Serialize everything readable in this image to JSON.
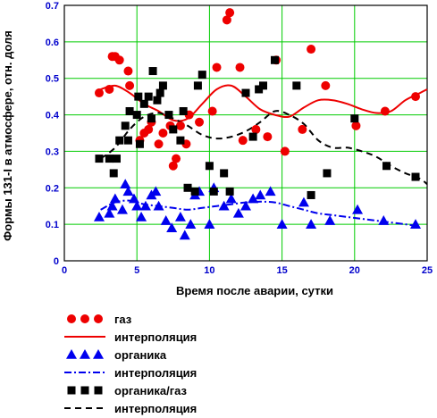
{
  "chart_data": {
    "type": "scatter",
    "xlabel": "Время после аварии, сутки",
    "ylabel": "Формы 131-I в атмосфере, отн. доля",
    "xlim": [
      0,
      25
    ],
    "ylim": [
      0,
      0.7
    ],
    "x_ticks": [
      "0",
      "5",
      "10",
      "15",
      "20",
      "25"
    ],
    "y_ticks": [
      "0",
      "0.1",
      "0.2",
      "0.3",
      "0.4",
      "0.5",
      "0.6",
      "0.7"
    ],
    "grid": true,
    "grid_color": "#00cc00",
    "legend_placement": "bottom",
    "series": [
      {
        "name": "газ",
        "kind": "points",
        "marker": "circle",
        "color": "#ee0000",
        "points": [
          [
            2.4,
            0.46
          ],
          [
            3.1,
            0.47
          ],
          [
            3.3,
            0.56
          ],
          [
            3.5,
            0.56
          ],
          [
            3.8,
            0.55
          ],
          [
            4.5,
            0.48
          ],
          [
            4.4,
            0.52
          ],
          [
            5.2,
            0.33
          ],
          [
            5.5,
            0.35
          ],
          [
            5.8,
            0.36
          ],
          [
            6.0,
            0.38
          ],
          [
            6.5,
            0.32
          ],
          [
            6.8,
            0.35
          ],
          [
            7.3,
            0.37
          ],
          [
            7.5,
            0.26
          ],
          [
            7.7,
            0.28
          ],
          [
            8.0,
            0.37
          ],
          [
            8.4,
            0.32
          ],
          [
            8.6,
            0.4
          ],
          [
            9.3,
            0.38
          ],
          [
            10.2,
            0.41
          ],
          [
            10.5,
            0.53
          ],
          [
            11.2,
            0.66
          ],
          [
            11.4,
            0.68
          ],
          [
            12.1,
            0.53
          ],
          [
            12.3,
            0.33
          ],
          [
            13.2,
            0.36
          ],
          [
            14.0,
            0.34
          ],
          [
            14.6,
            0.55
          ],
          [
            15.2,
            0.3
          ],
          [
            16.4,
            0.36
          ],
          [
            17.0,
            0.58
          ],
          [
            18.0,
            0.48
          ],
          [
            20.1,
            0.37
          ],
          [
            22.1,
            0.41
          ],
          [
            24.2,
            0.45
          ]
        ]
      },
      {
        "name": "интерполяция",
        "kind": "line",
        "dash": "solid",
        "color": "#ee0000",
        "points": [
          [
            2.5,
            0.47
          ],
          [
            3.5,
            0.48
          ],
          [
            4.5,
            0.46
          ],
          [
            5.5,
            0.43
          ],
          [
            6.5,
            0.41
          ],
          [
            7.5,
            0.385
          ],
          [
            8.5,
            0.39
          ],
          [
            9.5,
            0.43
          ],
          [
            10.5,
            0.47
          ],
          [
            11.5,
            0.48
          ],
          [
            12.5,
            0.45
          ],
          [
            13.5,
            0.415
          ],
          [
            14.5,
            0.4
          ],
          [
            15.5,
            0.395
          ],
          [
            16.5,
            0.42
          ],
          [
            17.5,
            0.44
          ],
          [
            18.5,
            0.44
          ],
          [
            19.5,
            0.43
          ],
          [
            20.5,
            0.415
          ],
          [
            21.5,
            0.405
          ],
          [
            22.5,
            0.41
          ],
          [
            23.5,
            0.44
          ],
          [
            24.5,
            0.46
          ],
          [
            25.0,
            0.47
          ]
        ]
      },
      {
        "name": "органика",
        "kind": "points",
        "marker": "triangle",
        "color": "#0000ee",
        "points": [
          [
            2.4,
            0.12
          ],
          [
            3.1,
            0.13
          ],
          [
            3.3,
            0.15
          ],
          [
            3.5,
            0.17
          ],
          [
            4.0,
            0.14
          ],
          [
            4.2,
            0.21
          ],
          [
            4.4,
            0.19
          ],
          [
            4.8,
            0.17
          ],
          [
            5.0,
            0.15
          ],
          [
            5.3,
            0.12
          ],
          [
            5.6,
            0.15
          ],
          [
            6.0,
            0.18
          ],
          [
            6.3,
            0.19
          ],
          [
            6.5,
            0.15
          ],
          [
            7.0,
            0.11
          ],
          [
            7.4,
            0.09
          ],
          [
            8.0,
            0.12
          ],
          [
            8.3,
            0.07
          ],
          [
            8.7,
            0.1
          ],
          [
            9.0,
            0.18
          ],
          [
            9.3,
            0.19
          ],
          [
            10.0,
            0.1
          ],
          [
            10.3,
            0.2
          ],
          [
            11.0,
            0.15
          ],
          [
            11.5,
            0.17
          ],
          [
            12.0,
            0.13
          ],
          [
            12.5,
            0.15
          ],
          [
            13.0,
            0.17
          ],
          [
            13.5,
            0.18
          ],
          [
            14.2,
            0.19
          ],
          [
            15.0,
            0.1
          ],
          [
            16.5,
            0.16
          ],
          [
            17.0,
            0.1
          ],
          [
            18.3,
            0.11
          ],
          [
            20.2,
            0.14
          ],
          [
            22.0,
            0.11
          ],
          [
            24.2,
            0.1
          ]
        ]
      },
      {
        "name": "интерполяция",
        "kind": "line",
        "dash": "dash-dot",
        "color": "#0000ee",
        "points": [
          [
            2.5,
            0.14
          ],
          [
            3.5,
            0.16
          ],
          [
            4.5,
            0.165
          ],
          [
            5.5,
            0.155
          ],
          [
            6.5,
            0.15
          ],
          [
            7.5,
            0.145
          ],
          [
            8.5,
            0.14
          ],
          [
            9.5,
            0.145
          ],
          [
            10.5,
            0.15
          ],
          [
            11.5,
            0.155
          ],
          [
            12.5,
            0.16
          ],
          [
            13.5,
            0.162
          ],
          [
            14.5,
            0.16
          ],
          [
            15.5,
            0.15
          ],
          [
            16.5,
            0.14
          ],
          [
            17.5,
            0.13
          ],
          [
            18.5,
            0.125
          ],
          [
            19.5,
            0.12
          ],
          [
            20.5,
            0.115
          ],
          [
            21.5,
            0.11
          ],
          [
            22.5,
            0.105
          ],
          [
            23.5,
            0.1
          ],
          [
            24.3,
            0.095
          ]
        ]
      },
      {
        "name": "органика/газ",
        "kind": "points",
        "marker": "square",
        "color": "#000000",
        "points": [
          [
            2.4,
            0.28
          ],
          [
            3.1,
            0.28
          ],
          [
            3.4,
            0.24
          ],
          [
            3.6,
            0.28
          ],
          [
            3.8,
            0.33
          ],
          [
            4.2,
            0.37
          ],
          [
            4.4,
            0.33
          ],
          [
            4.5,
            0.41
          ],
          [
            5.0,
            0.4
          ],
          [
            5.1,
            0.45
          ],
          [
            5.2,
            0.32
          ],
          [
            5.5,
            0.43
          ],
          [
            5.8,
            0.45
          ],
          [
            6.0,
            0.39
          ],
          [
            6.1,
            0.52
          ],
          [
            6.4,
            0.44
          ],
          [
            6.6,
            0.46
          ],
          [
            6.8,
            0.48
          ],
          [
            7.2,
            0.4
          ],
          [
            7.5,
            0.36
          ],
          [
            8.0,
            0.33
          ],
          [
            8.2,
            0.41
          ],
          [
            8.5,
            0.2
          ],
          [
            9.0,
            0.19
          ],
          [
            9.2,
            0.48
          ],
          [
            9.5,
            0.51
          ],
          [
            10.0,
            0.26
          ],
          [
            10.3,
            0.19
          ],
          [
            11.0,
            0.24
          ],
          [
            11.4,
            0.19
          ],
          [
            12.5,
            0.46
          ],
          [
            13.0,
            0.34
          ],
          [
            13.4,
            0.47
          ],
          [
            13.7,
            0.48
          ],
          [
            14.5,
            0.55
          ],
          [
            16.0,
            0.48
          ],
          [
            17.0,
            0.18
          ],
          [
            18.1,
            0.24
          ],
          [
            20.0,
            0.39
          ],
          [
            22.2,
            0.26
          ],
          [
            24.2,
            0.23
          ]
        ]
      },
      {
        "name": "интерполяция",
        "kind": "line",
        "dash": "dashed",
        "color": "#000000",
        "points": [
          [
            2.5,
            0.28
          ],
          [
            3.5,
            0.31
          ],
          [
            4.5,
            0.36
          ],
          [
            5.5,
            0.395
          ],
          [
            6.5,
            0.405
          ],
          [
            7.5,
            0.39
          ],
          [
            8.5,
            0.37
          ],
          [
            9.5,
            0.345
          ],
          [
            10.5,
            0.335
          ],
          [
            11.5,
            0.34
          ],
          [
            12.5,
            0.355
          ],
          [
            13.5,
            0.38
          ],
          [
            14.5,
            0.41
          ],
          [
            15.5,
            0.4
          ],
          [
            16.5,
            0.375
          ],
          [
            17.5,
            0.33
          ],
          [
            18.5,
            0.31
          ],
          [
            19.5,
            0.31
          ],
          [
            20.5,
            0.3
          ],
          [
            21.5,
            0.285
          ],
          [
            22.5,
            0.26
          ],
          [
            23.5,
            0.24
          ],
          [
            24.5,
            0.225
          ],
          [
            25.0,
            0.21
          ]
        ]
      }
    ]
  }
}
